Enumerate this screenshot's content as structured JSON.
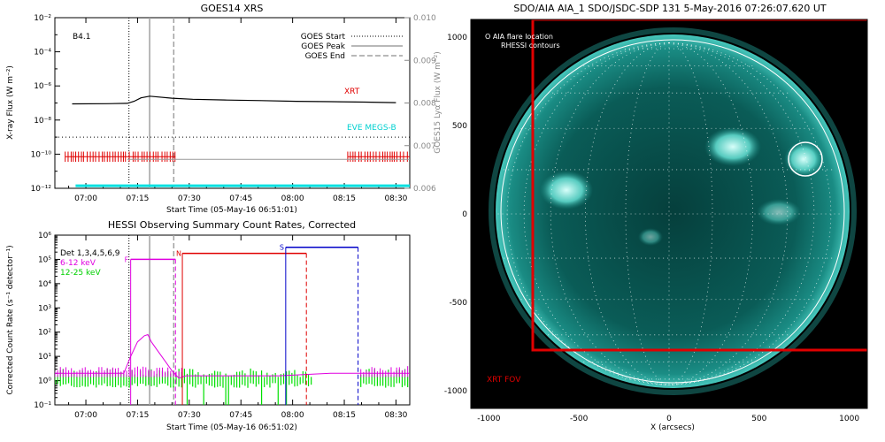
{
  "goes": {
    "title": "GOES14 XRS",
    "ylabel_left": "X-ray Flux (W m⁻²)",
    "ylabel_right": "GOES15 Lyα Flux (W m⁻²)",
    "xlabel": "Start Time (05-May-16 06:51:01)",
    "class_label": "B4.1",
    "legend": [
      "GOES Start",
      "GOES Peak",
      "GOES End"
    ],
    "label_xrt": "XRT",
    "label_eve": "EVE MEGS-B"
  },
  "hessi": {
    "title": "HESSI Observing Summary Count Rates, Corrected",
    "ylabel": "Corrected Count Rate (s⁻¹ detector⁻¹)",
    "xlabel": "Start Time (05-May-16 06:51:02)",
    "legend": [
      "Det 1,3,4,5,6,9",
      "6-12 keV",
      "12-25 keV"
    ],
    "flags": [
      "F",
      "N",
      "S"
    ]
  },
  "aia": {
    "title": "SDO/AIA AIA_1 SDO/JSDC-SDP 131   5-May-2016 07:26:07.620 UT",
    "legend": [
      "O AIA flare location",
      "RHESSI contours"
    ],
    "fov_label": "XRT FOV",
    "xlabel": "X (arcsecs)"
  },
  "colors": {
    "xrt": "#e00000",
    "eve": "#00e0e0",
    "low": "#e000e0",
    "high": "#00e000",
    "blue": "#0000c8",
    "marker": "#a0a0a0",
    "sun": "#0b6f6a"
  },
  "chart_data": [
    {
      "type": "line",
      "title": "GOES14 XRS",
      "xlabel": "Start Time (05-May-16 06:51:01)",
      "ylabel": "X-ray Flux (W m^-2)",
      "ylabel_right": "GOES15 Lyα Flux (W m^-2)",
      "x_ticks": [
        "07:00",
        "07:15",
        "07:30",
        "07:45",
        "08:00",
        "08:15",
        "08:30"
      ],
      "x_tick_values": [
        9,
        24,
        39,
        54,
        69,
        84,
        99
      ],
      "xlim": [
        0,
        103
      ],
      "y_scale": "log",
      "ylim": [
        1e-12,
        0.01
      ],
      "y_ticks": [
        "10⁻²",
        "10⁻⁴",
        "10⁻⁶",
        "10⁻⁸",
        "10⁻¹⁰",
        "10⁻¹²"
      ],
      "y_tick_values": [
        -2,
        -4,
        -6,
        -8,
        -10,
        -12
      ],
      "y2lim": [
        0.006,
        0.01
      ],
      "y2_ticks": [
        "0.010",
        "0.009",
        "0.008",
        "0.007",
        "0.006"
      ],
      "y2_tick_values": [
        0.01,
        0.009,
        0.008,
        0.007,
        0.006
      ],
      "markers": {
        "start": 21.5,
        "peak": 27.5,
        "end": 34.5
      },
      "series": [
        {
          "name": "XRT",
          "points": [
            [
              5,
              -7.05
            ],
            [
              15,
              -7.04
            ],
            [
              21,
              -7.02
            ],
            [
              23,
              -6.9
            ],
            [
              25,
              -6.7
            ],
            [
              27.5,
              -6.6
            ],
            [
              30,
              -6.65
            ],
            [
              34,
              -6.72
            ],
            [
              40,
              -6.78
            ],
            [
              50,
              -6.83
            ],
            [
              60,
              -6.86
            ],
            [
              70,
              -6.9
            ],
            [
              80,
              -6.92
            ],
            [
              90,
              -6.95
            ],
            [
              99,
              -6.98
            ]
          ]
        },
        {
          "name": "EVE MEGS-B",
          "points": [
            [
              6,
              -11.85
            ],
            [
              103,
              -11.85
            ]
          ]
        },
        {
          "name": "GOES15 Lyα",
          "points": [
            [
              21,
              0.00668
            ],
            [
              103,
              0.00668
            ]
          ]
        }
      ],
      "threshold": -9.0,
      "hessi_ticks": {
        "band": [
          -10.45,
          -9.85
        ],
        "ranges": [
          [
            3,
            35
          ],
          [
            85,
            103
          ]
        ]
      },
      "class": "B4.1"
    },
    {
      "type": "line",
      "title": "HESSI Observing Summary Count Rates, Corrected",
      "xlabel": "Start Time (05-May-16 06:51:02)",
      "ylabel": "Corrected Count Rate (s^-1 detector^-1)",
      "x_ticks": [
        "07:00",
        "07:15",
        "07:30",
        "07:45",
        "08:00",
        "08:15",
        "08:30"
      ],
      "x_tick_values": [
        9,
        24,
        39,
        54,
        69,
        84,
        99
      ],
      "xlim": [
        0,
        103
      ],
      "y_scale": "log",
      "ylim": [
        0.1,
        1000000.0
      ],
      "y_ticks": [
        "10⁶",
        "10⁵",
        "10⁴",
        "10³",
        "10²",
        "10¹",
        "10⁰",
        "10⁻¹"
      ],
      "y_tick_values": [
        6,
        5,
        4,
        3,
        2,
        1,
        0,
        -1
      ],
      "markers": {
        "start": 21.5,
        "peak": 27.5,
        "end": 34.5
      },
      "series": [
        {
          "name": "6-12 keV",
          "points": [
            [
              0,
              0.3
            ],
            [
              20,
              0.3
            ],
            [
              22,
              1.0
            ],
            [
              24,
              1.6
            ],
            [
              26,
              1.85
            ],
            [
              27,
              1.9
            ],
            [
              28,
              1.6
            ],
            [
              30,
              1.2
            ],
            [
              32,
              0.8
            ],
            [
              34,
              0.4
            ],
            [
              36,
              0.1
            ],
            [
              38,
              0.2
            ],
            [
              65,
              0.2
            ],
            [
              80,
              0.3
            ],
            [
              99,
              0.3
            ],
            [
              103,
              0.3
            ]
          ]
        },
        {
          "name": "12-25 keV",
          "points": [
            [
              0,
              0.05
            ],
            [
              100,
              0.05
            ],
            [
              103,
              0.05
            ]
          ]
        }
      ],
      "states": [
        {
          "flag": "F",
          "x": [
            22,
            35
          ],
          "level": 5.0,
          "color": "magenta"
        },
        {
          "flag": "N",
          "x": [
            37,
            73
          ],
          "level": 5.25,
          "color": "red"
        },
        {
          "flag": "S",
          "x": [
            67,
            88
          ],
          "level": 5.5,
          "color": "blue"
        }
      ]
    },
    {
      "type": "heatmap",
      "title": "SDO/AIA AIA_1 SDO/JSDC-SDP 131   5-May-2016 07:26:07.620 UT",
      "xlabel": "X (arcsecs)",
      "xlim": [
        -1100,
        1100
      ],
      "ylim": [
        -1100,
        1100
      ],
      "x_ticks": [
        -1000,
        -500,
        0,
        500,
        1000
      ],
      "y_ticks": [
        1000,
        500,
        0,
        -500,
        -1000
      ],
      "solar_radius": 950,
      "flare_location": {
        "x": 760,
        "y": 290,
        "radius": 95
      },
      "xrt_fov": {
        "x": [
          -780,
          1100
        ],
        "y": [
          -790,
          1100
        ]
      }
    }
  ]
}
